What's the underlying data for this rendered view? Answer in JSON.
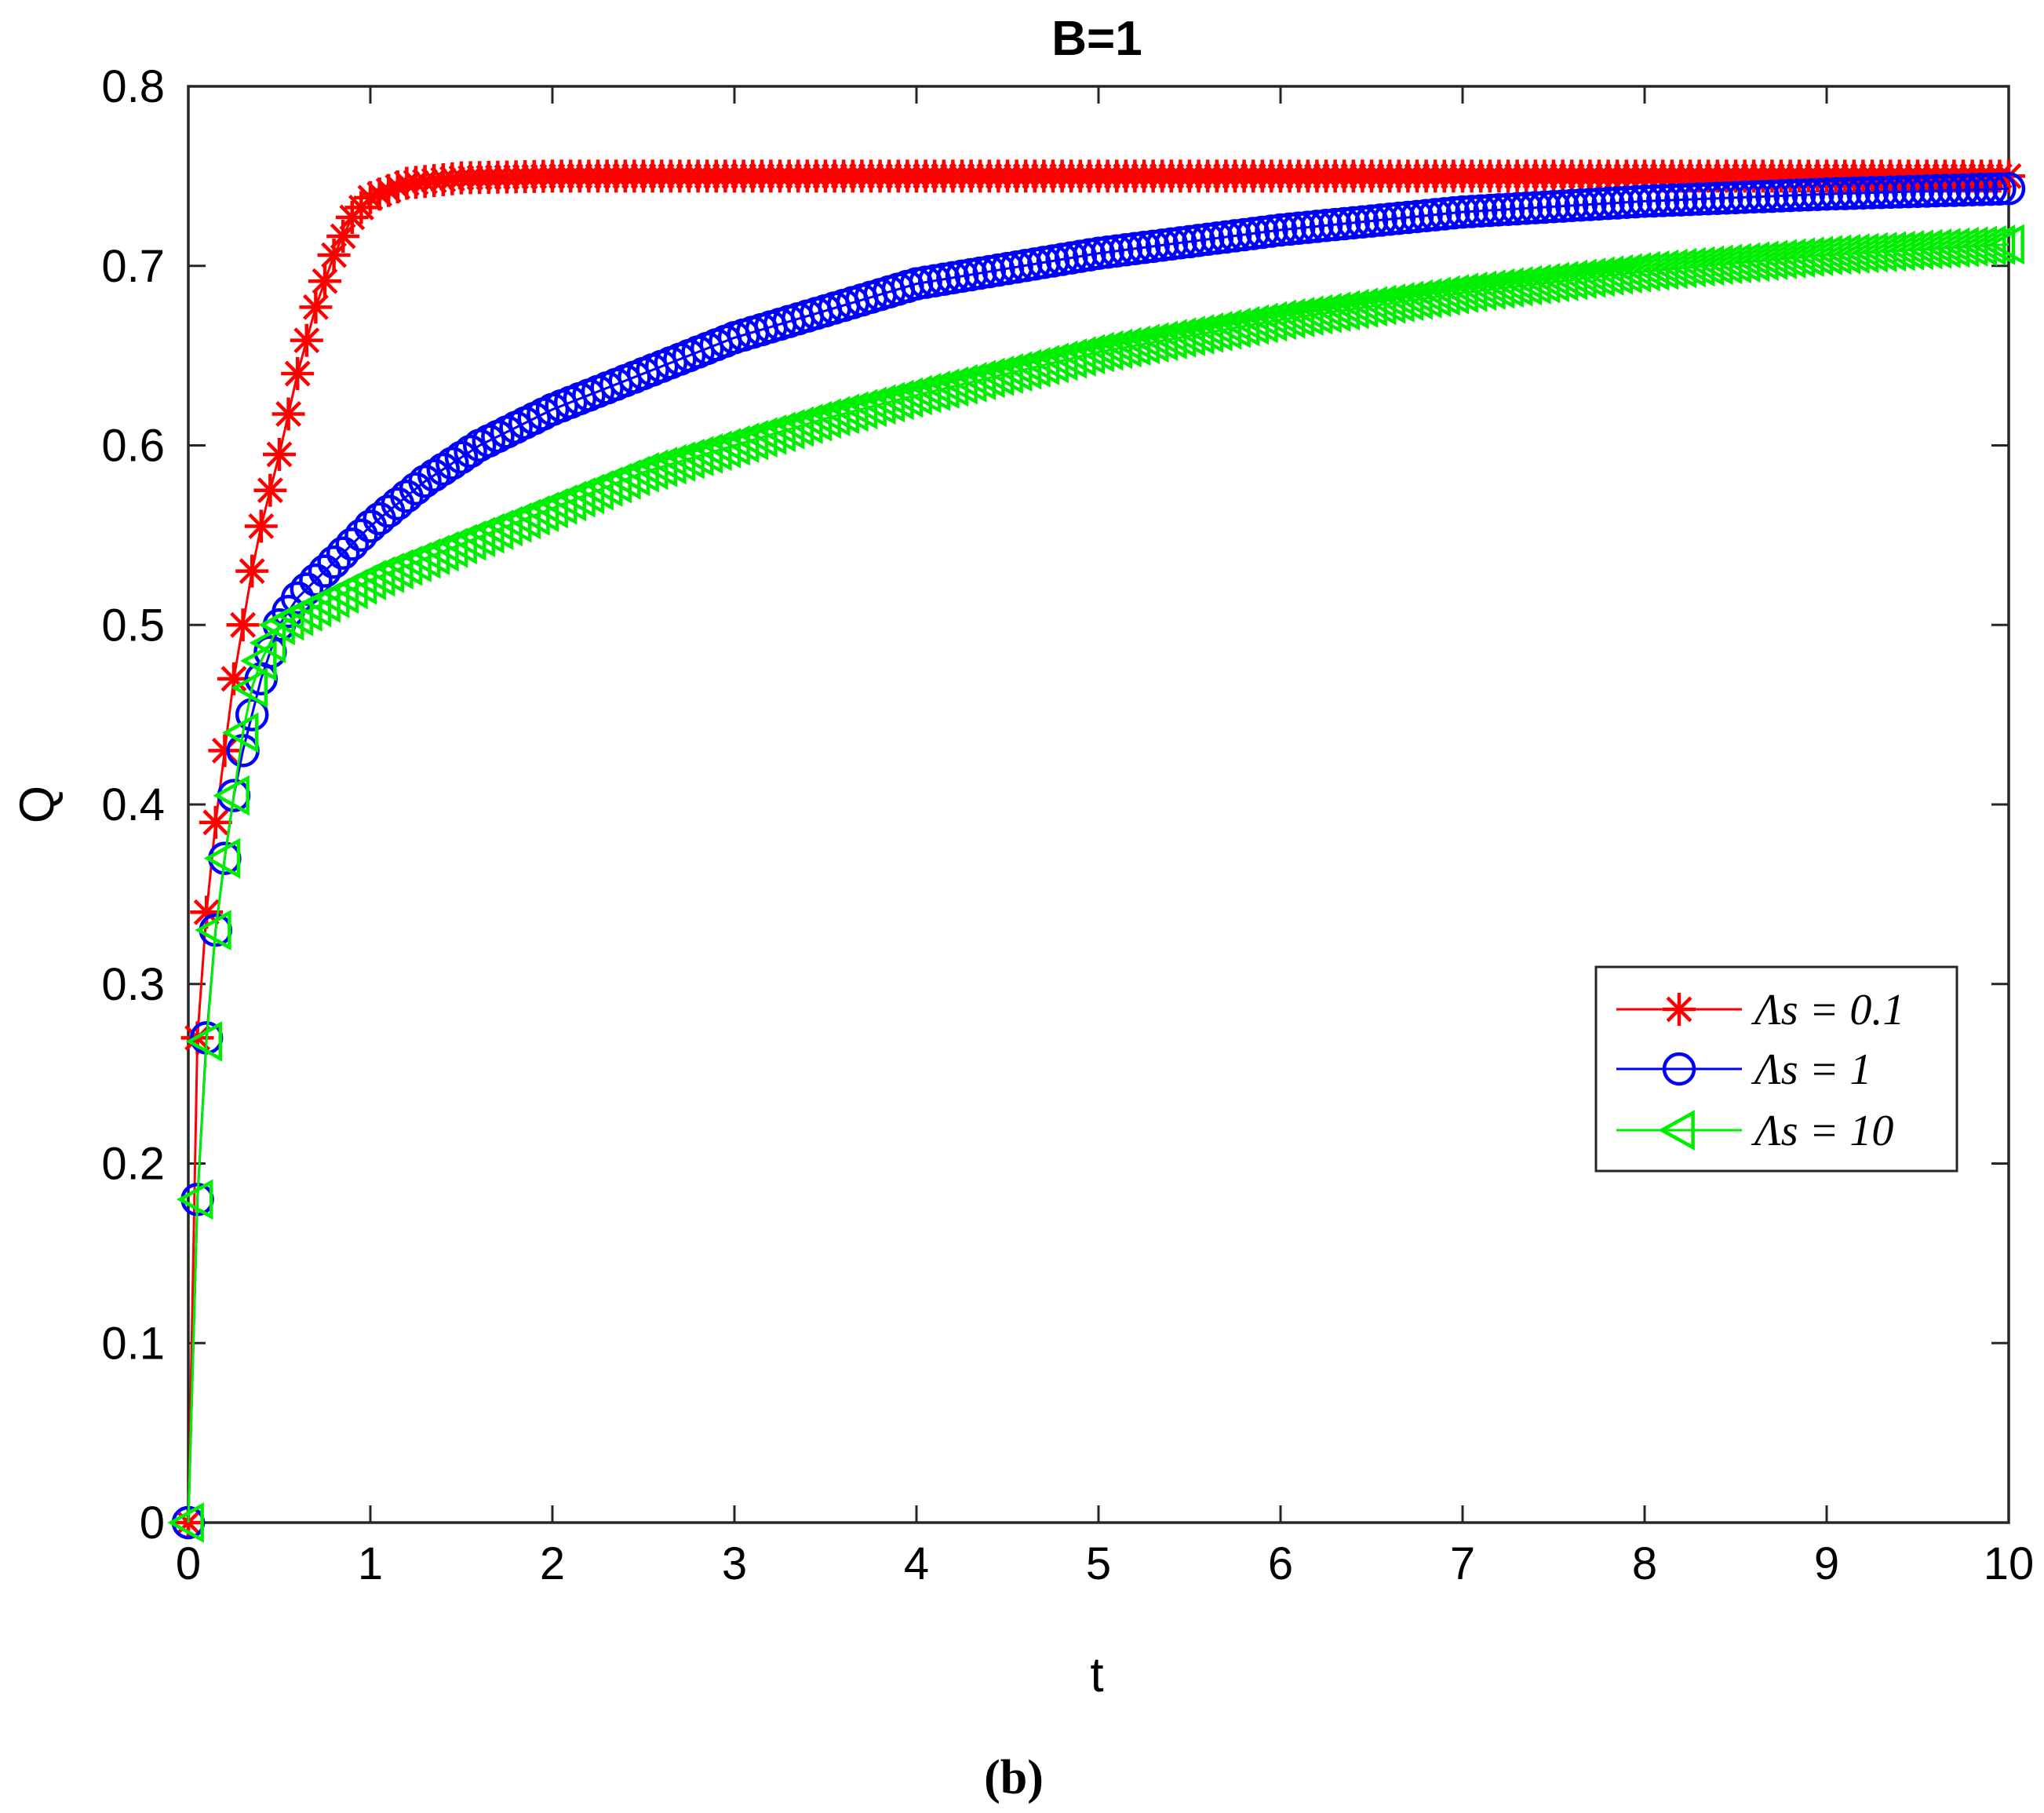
{
  "chart_data": {
    "type": "line",
    "title": "B=1",
    "xlabel": "t",
    "ylabel": "Q",
    "caption": "(b)",
    "xlim": [
      0,
      10
    ],
    "ylim": [
      0,
      0.8
    ],
    "xticks": [
      "0",
      "1",
      "2",
      "3",
      "4",
      "5",
      "6",
      "7",
      "8",
      "9",
      "10"
    ],
    "yticks": [
      "0",
      "0.1",
      "0.2",
      "0.3",
      "0.4",
      "0.5",
      "0.6",
      "0.7",
      "0.8"
    ],
    "grid": false,
    "legend_position": "right",
    "series": [
      {
        "name": "Λs = 0.1",
        "color": "#ff0000",
        "marker": "asterisk",
        "x": [
          0,
          0.05,
          0.1,
          0.15,
          0.2,
          0.25,
          0.3,
          0.35,
          0.4,
          0.45,
          0.5,
          0.6,
          0.7,
          0.8,
          0.9,
          1.0,
          1.2,
          1.5,
          2,
          3,
          4,
          5,
          6,
          7,
          8,
          9,
          10
        ],
        "y": [
          0,
          0.27,
          0.34,
          0.39,
          0.43,
          0.47,
          0.5,
          0.53,
          0.555,
          0.575,
          0.595,
          0.64,
          0.677,
          0.706,
          0.727,
          0.738,
          0.746,
          0.749,
          0.75,
          0.75,
          0.75,
          0.75,
          0.75,
          0.75,
          0.75,
          0.75,
          0.75
        ]
      },
      {
        "name": "Λs = 1",
        "color": "#0000ff",
        "marker": "circle",
        "x": [
          0,
          0.05,
          0.1,
          0.15,
          0.2,
          0.25,
          0.3,
          0.35,
          0.4,
          0.5,
          0.6,
          0.8,
          1.0,
          1.3,
          1.6,
          2,
          2.5,
          3,
          3.5,
          4,
          5,
          6,
          7,
          8,
          9,
          10
        ],
        "y": [
          0,
          0.18,
          0.27,
          0.33,
          0.37,
          0.405,
          0.43,
          0.45,
          0.47,
          0.5,
          0.515,
          0.535,
          0.555,
          0.58,
          0.6,
          0.62,
          0.64,
          0.66,
          0.675,
          0.69,
          0.707,
          0.72,
          0.73,
          0.736,
          0.74,
          0.743
        ]
      },
      {
        "name": "Λs = 10",
        "color": "#00ee00",
        "marker": "triangle-left",
        "x": [
          0,
          0.05,
          0.1,
          0.15,
          0.2,
          0.25,
          0.3,
          0.35,
          0.4,
          0.5,
          0.6,
          0.8,
          1.0,
          1.5,
          2,
          2.5,
          3,
          3.5,
          4,
          5,
          6,
          7,
          8,
          9,
          10
        ],
        "y": [
          0,
          0.18,
          0.268,
          0.33,
          0.37,
          0.405,
          0.44,
          0.465,
          0.48,
          0.5,
          0.505,
          0.515,
          0.525,
          0.545,
          0.565,
          0.585,
          0.6,
          0.615,
          0.628,
          0.652,
          0.67,
          0.685,
          0.697,
          0.706,
          0.712
        ]
      }
    ]
  }
}
